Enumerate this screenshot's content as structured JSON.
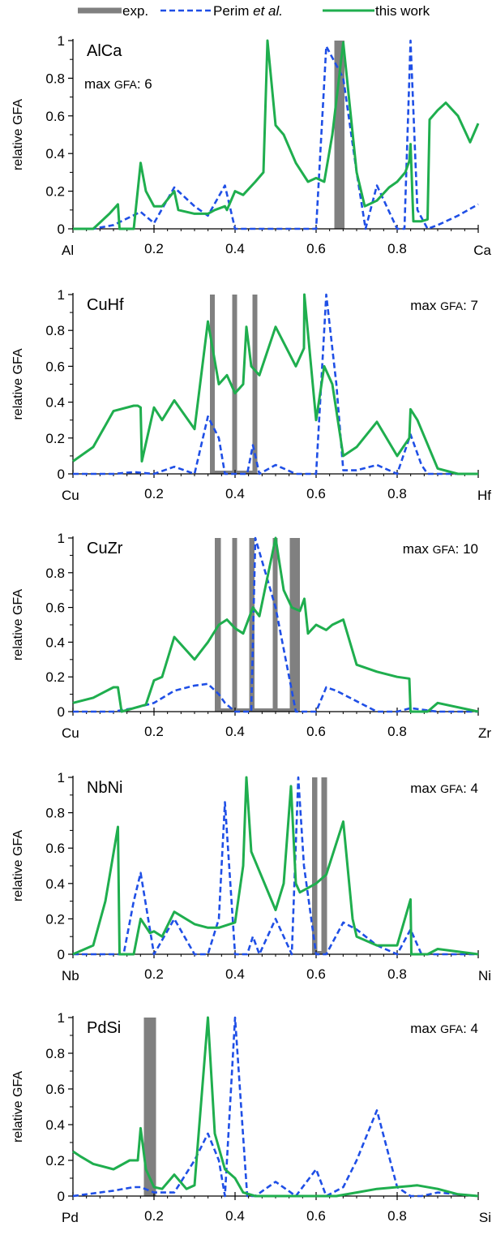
{
  "legend": {
    "entries": [
      {
        "label": "exp.",
        "style": "exp",
        "color": "#808080"
      },
      {
        "label_parts": [
          "Perim ",
          "et al.",
          ""
        ],
        "style": "perim",
        "color": "#1f4fe6"
      },
      {
        "label": "this work",
        "style": "this",
        "color": "#1fae4e"
      }
    ]
  },
  "chart_data": [
    {
      "type": "line",
      "panel_label": "AlCa",
      "max_gfa_text": "max GFA: 6",
      "ylabel": "relative GFA",
      "xlim": [
        0,
        1
      ],
      "ylim": [
        0,
        1
      ],
      "x_end_labels": [
        "Al",
        "Ca"
      ],
      "x_ticks": [
        "0.2",
        "0.4",
        "0.6",
        "0.8"
      ],
      "y_ticks": [
        "0",
        "0.2",
        "0.4",
        "0.6",
        "0.8",
        "1"
      ],
      "exp_bars": [
        [
          0.645,
          0.67
        ]
      ],
      "series": [
        {
          "name": "Perim et al.",
          "x": [
            0,
            0.05,
            0.1,
            0.167,
            0.2,
            0.25,
            0.3,
            0.333,
            0.375,
            0.4,
            0.45,
            0.5,
            0.55,
            0.6,
            0.625,
            0.667,
            0.7,
            0.722,
            0.75,
            0.8,
            0.818,
            0.833,
            0.85,
            0.875,
            0.9,
            0.95,
            1.0
          ],
          "y": [
            0,
            0,
            0.02,
            0.09,
            0.03,
            0.22,
            0.12,
            0.07,
            0.23,
            0.0,
            0.0,
            0.0,
            0.0,
            0.0,
            0.97,
            0.8,
            0.3,
            0.0,
            0.23,
            0.0,
            0.0,
            1.0,
            0.1,
            0.0,
            0.02,
            0.07,
            0.13
          ]
        },
        {
          "name": "this work",
          "x": [
            0,
            0.05,
            0.09,
            0.111,
            0.115,
            0.15,
            0.167,
            0.18,
            0.2,
            0.22,
            0.25,
            0.26,
            0.3,
            0.333,
            0.35,
            0.375,
            0.38,
            0.4,
            0.42,
            0.45,
            0.47,
            0.48,
            0.5,
            0.52,
            0.55,
            0.58,
            0.6,
            0.62,
            0.64,
            0.667,
            0.7,
            0.72,
            0.75,
            0.78,
            0.8,
            0.82,
            0.83,
            0.833,
            0.84,
            0.86,
            0.875,
            0.88,
            0.9,
            0.92,
            0.95,
            0.98,
            1.0
          ],
          "y": [
            0,
            0,
            0.08,
            0.13,
            0.0,
            0.0,
            0.35,
            0.2,
            0.12,
            0.12,
            0.2,
            0.1,
            0.08,
            0.08,
            0.1,
            0.12,
            0.1,
            0.2,
            0.18,
            0.25,
            0.3,
            1.0,
            0.55,
            0.5,
            0.35,
            0.25,
            0.27,
            0.25,
            0.5,
            0.99,
            0.3,
            0.12,
            0.15,
            0.22,
            0.25,
            0.3,
            0.36,
            0.45,
            0.04,
            0.04,
            0.05,
            0.58,
            0.63,
            0.67,
            0.6,
            0.46,
            0.56
          ]
        }
      ]
    },
    {
      "type": "line",
      "panel_label": "CuHf",
      "max_gfa_text": "max GFA: 7",
      "ylabel": "relative GFA",
      "xlim": [
        0,
        1
      ],
      "ylim": [
        0,
        1
      ],
      "x_end_labels": [
        "Cu",
        "Hf"
      ],
      "x_ticks": [
        "0.2",
        "0.4",
        "0.6",
        "0.8"
      ],
      "y_ticks": [
        "0",
        "0.2",
        "0.4",
        "0.6",
        "0.8",
        "1"
      ],
      "exp_bars": [
        [
          0.338,
          0.35
        ],
        [
          0.393,
          0.405
        ],
        [
          0.443,
          0.455
        ]
      ],
      "series": [
        {
          "name": "Perim et al.",
          "x": [
            0,
            0.1,
            0.15,
            0.2,
            0.25,
            0.3,
            0.333,
            0.36,
            0.375,
            0.4,
            0.43,
            0.444,
            0.46,
            0.5,
            0.55,
            0.6,
            0.625,
            0.65,
            0.667,
            0.7,
            0.75,
            0.8,
            0.833,
            0.86,
            0.875,
            0.9,
            1.0
          ],
          "y": [
            0,
            0,
            0.01,
            0.0,
            0.04,
            0.0,
            0.32,
            0.2,
            0.0,
            0.0,
            0.0,
            0.16,
            0.0,
            0.05,
            0.0,
            0.0,
            1.0,
            0.5,
            0.02,
            0.02,
            0.05,
            0.0,
            0.22,
            0.05,
            0.0,
            0.0,
            0.0
          ]
        },
        {
          "name": "this work",
          "x": [
            0,
            0.05,
            0.1,
            0.15,
            0.16,
            0.167,
            0.17,
            0.2,
            0.22,
            0.25,
            0.3,
            0.333,
            0.36,
            0.38,
            0.4,
            0.42,
            0.428,
            0.44,
            0.46,
            0.5,
            0.55,
            0.57,
            0.571,
            0.6,
            0.62,
            0.64,
            0.667,
            0.7,
            0.75,
            0.8,
            0.83,
            0.833,
            0.85,
            0.9,
            0.95,
            1.0
          ],
          "y": [
            0.07,
            0.15,
            0.35,
            0.38,
            0.38,
            0.37,
            0.07,
            0.37,
            0.3,
            0.41,
            0.25,
            0.85,
            0.5,
            0.55,
            0.45,
            0.5,
            0.82,
            0.6,
            0.55,
            0.82,
            0.6,
            0.7,
            1.0,
            0.3,
            0.6,
            0.5,
            0.1,
            0.15,
            0.29,
            0.1,
            0.2,
            0.36,
            0.3,
            0.03,
            0.0,
            0.0
          ]
        }
      ]
    },
    {
      "type": "line",
      "panel_label": "CuZr",
      "max_gfa_text": "max GFA: 10",
      "ylabel": "relative GFA",
      "xlim": [
        0,
        1
      ],
      "ylim": [
        0,
        1
      ],
      "x_end_labels": [
        "Cu",
        "Zr"
      ],
      "x_ticks": [
        "0.2",
        "0.4",
        "0.6",
        "0.8"
      ],
      "y_ticks": [
        "0",
        "0.2",
        "0.4",
        "0.6",
        "0.8",
        "1"
      ],
      "exp_bars": [
        [
          0.35,
          0.365
        ],
        [
          0.393,
          0.405
        ],
        [
          0.435,
          0.448
        ],
        [
          0.493,
          0.505
        ],
        [
          0.535,
          0.56
        ]
      ],
      "series": [
        {
          "name": "Perim et al.",
          "x": [
            0,
            0.1,
            0.15,
            0.2,
            0.25,
            0.3,
            0.333,
            0.36,
            0.375,
            0.4,
            0.44,
            0.45,
            0.5,
            0.55,
            0.571,
            0.6,
            0.625,
            0.65,
            0.7,
            0.75,
            0.8,
            0.833,
            0.9,
            1.0
          ],
          "y": [
            0,
            0,
            0.02,
            0.05,
            0.12,
            0.15,
            0.16,
            0.1,
            0.05,
            0.0,
            0.0,
            1.0,
            0.6,
            0.0,
            0.0,
            0.0,
            0.14,
            0.12,
            0.06,
            0.0,
            0.0,
            0.02,
            0.0,
            0.0
          ]
        },
        {
          "name": "this work",
          "x": [
            0,
            0.05,
            0.1,
            0.111,
            0.12,
            0.18,
            0.2,
            0.22,
            0.25,
            0.3,
            0.333,
            0.36,
            0.38,
            0.4,
            0.42,
            0.444,
            0.46,
            0.5,
            0.52,
            0.54,
            0.56,
            0.571,
            0.58,
            0.6,
            0.625,
            0.64,
            0.667,
            0.7,
            0.75,
            0.8,
            0.83,
            0.833,
            0.85,
            0.875,
            0.9,
            1.0
          ],
          "y": [
            0.05,
            0.08,
            0.14,
            0.14,
            0.0,
            0.04,
            0.18,
            0.2,
            0.43,
            0.3,
            0.4,
            0.5,
            0.53,
            0.48,
            0.45,
            0.6,
            0.55,
            1.0,
            0.7,
            0.6,
            0.58,
            0.65,
            0.45,
            0.5,
            0.47,
            0.5,
            0.53,
            0.27,
            0.23,
            0.2,
            0.19,
            0.0,
            0.0,
            0.0,
            0.05,
            0.0
          ]
        }
      ]
    },
    {
      "type": "line",
      "panel_label": "NbNi",
      "max_gfa_text": "max GFA: 4",
      "ylabel": "relative GFA",
      "xlim": [
        0,
        1
      ],
      "ylim": [
        0,
        1
      ],
      "x_end_labels": [
        "Nb",
        "Ni"
      ],
      "x_ticks": [
        "0.2",
        "0.4",
        "0.6",
        "0.8"
      ],
      "y_ticks": [
        "0",
        "0.2",
        "0.4",
        "0.6",
        "0.8",
        "1"
      ],
      "exp_bars": [
        [
          0.59,
          0.603
        ],
        [
          0.613,
          0.627
        ]
      ],
      "series": [
        {
          "name": "Perim et al.",
          "x": [
            0,
            0.1,
            0.125,
            0.15,
            0.167,
            0.2,
            0.25,
            0.3,
            0.333,
            0.36,
            0.375,
            0.4,
            0.43,
            0.444,
            0.46,
            0.5,
            0.54,
            0.556,
            0.57,
            0.6,
            0.625,
            0.667,
            0.7,
            0.75,
            0.8,
            0.833,
            0.86,
            0.9,
            1.0
          ],
          "y": [
            0,
            0,
            0.0,
            0.3,
            0.46,
            0.0,
            0.2,
            0.0,
            0.0,
            0.2,
            0.86,
            0.0,
            0.0,
            0.1,
            0.0,
            0.2,
            0.0,
            1.0,
            0.5,
            0.0,
            0.0,
            0.18,
            0.14,
            0.05,
            0.0,
            0.14,
            0.0,
            0.0,
            0.0
          ]
        },
        {
          "name": "this work",
          "x": [
            0,
            0.05,
            0.08,
            0.111,
            0.115,
            0.15,
            0.167,
            0.19,
            0.2,
            0.22,
            0.25,
            0.3,
            0.333,
            0.36,
            0.4,
            0.42,
            0.428,
            0.44,
            0.5,
            0.52,
            0.538,
            0.55,
            0.56,
            0.6,
            0.625,
            0.667,
            0.69,
            0.7,
            0.75,
            0.8,
            0.833,
            0.835,
            0.85,
            0.875,
            0.9,
            1.0
          ],
          "y": [
            0,
            0.05,
            0.3,
            0.72,
            0.0,
            0.0,
            0.2,
            0.12,
            0.13,
            0.1,
            0.24,
            0.17,
            0.15,
            0.15,
            0.18,
            0.5,
            1.0,
            0.58,
            0.25,
            0.4,
            0.95,
            0.4,
            0.35,
            0.4,
            0.45,
            0.75,
            0.2,
            0.1,
            0.05,
            0.05,
            0.31,
            0.0,
            0.0,
            0.0,
            0.03,
            0.0
          ]
        }
      ]
    },
    {
      "type": "line",
      "panel_label": "PdSi",
      "max_gfa_text": "max GFA: 4",
      "ylabel": "relative GFA",
      "xlim": [
        0,
        1
      ],
      "ylim": [
        0,
        1
      ],
      "x_end_labels": [
        "Pd",
        "Si"
      ],
      "x_ticks": [
        "0.2",
        "0.4",
        "0.6",
        "0.8"
      ],
      "y_ticks": [
        "0",
        "0.2",
        "0.4",
        "0.6",
        "0.8",
        "1"
      ],
      "exp_bars": [
        [
          0.175,
          0.205
        ]
      ],
      "series": [
        {
          "name": "Perim et al.",
          "x": [
            0,
            0.1,
            0.15,
            0.167,
            0.2,
            0.25,
            0.3,
            0.333,
            0.36,
            0.375,
            0.4,
            0.43,
            0.45,
            0.5,
            0.55,
            0.6,
            0.625,
            0.667,
            0.7,
            0.75,
            0.8,
            0.833,
            0.86,
            0.9,
            1.0
          ],
          "y": [
            0,
            0.03,
            0.05,
            0.05,
            0.02,
            0.02,
            0.2,
            0.35,
            0.2,
            0.0,
            1.0,
            0.0,
            0.0,
            0.08,
            0.0,
            0.15,
            0.0,
            0.05,
            0.2,
            0.48,
            0.05,
            0.0,
            0.0,
            0.02,
            0.0
          ]
        },
        {
          "name": "this work",
          "x": [
            0,
            0.02,
            0.05,
            0.1,
            0.14,
            0.16,
            0.167,
            0.18,
            0.2,
            0.22,
            0.25,
            0.28,
            0.3,
            0.333,
            0.35,
            0.375,
            0.4,
            0.42,
            0.45,
            0.5,
            0.55,
            0.6,
            0.65,
            0.7,
            0.75,
            0.8,
            0.85,
            0.9,
            0.95,
            1.0
          ],
          "y": [
            0.25,
            0.22,
            0.18,
            0.15,
            0.2,
            0.2,
            0.38,
            0.15,
            0.05,
            0.04,
            0.12,
            0.04,
            0.06,
            1.0,
            0.35,
            0.15,
            0.1,
            0.02,
            0.0,
            0.0,
            0.0,
            0.0,
            0.0,
            0.02,
            0.04,
            0.05,
            0.06,
            0.04,
            0.01,
            0.0
          ]
        }
      ]
    }
  ]
}
